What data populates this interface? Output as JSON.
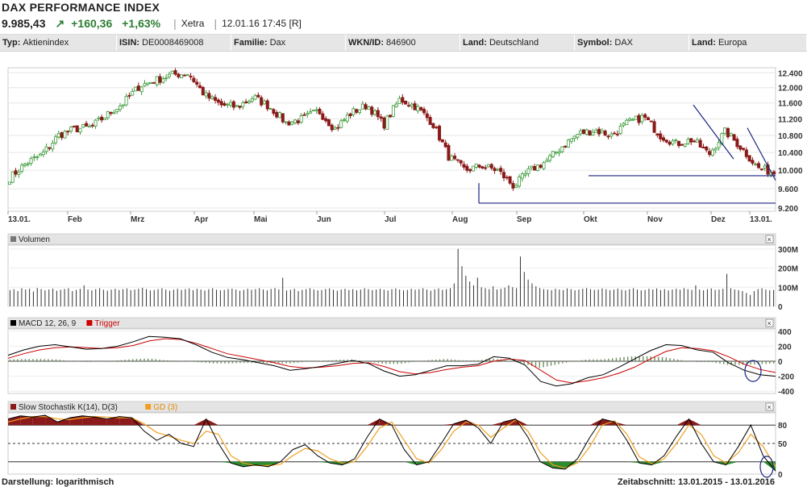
{
  "header": {
    "title": "DAX PERFORMANCE INDEX",
    "price": "9.985,43",
    "arrow_icon": "up-right-arrow",
    "change_abs": "+160,36",
    "change_pct": "+1,63%",
    "exchange": "Xetra",
    "datetime": "12.01.16 17:45 [R]"
  },
  "info": [
    {
      "label": "Typ:",
      "value": "Aktienindex"
    },
    {
      "label": "ISIN:",
      "value": "DE0008469008"
    },
    {
      "label": "Familie:",
      "value": "Dax"
    },
    {
      "label": "WKN/ID:",
      "value": "846900"
    },
    {
      "label": "Land:",
      "value": "Deutschland"
    },
    {
      "label": "Symbol:",
      "value": "DAX"
    },
    {
      "label": "Land:",
      "value": "Europa"
    }
  ],
  "footer": {
    "display_mode": "Darstellung: logarithmisch",
    "period": "Zeitabschnitt: 13.01.2015 - 13.01.2016"
  },
  "colors": {
    "up_candle": "#3a9a3a",
    "down_candle": "#8b1a1a",
    "macd_line": "#000000",
    "trigger_line": "#cc0000",
    "k_line": "#000000",
    "d_line": "#f0a020",
    "stoch_upper_fill": "#8b1a1a",
    "stoch_lower_fill": "#2e8b2e",
    "histogram": "#6f8f5f",
    "annotation": "#1a237e"
  },
  "chart_data": [
    {
      "type": "candlestick",
      "title": "",
      "scale": "log",
      "x_tick_labels": [
        "13.01.",
        "Feb",
        "Mrz",
        "Apr",
        "Mai",
        "Jun",
        "Jul",
        "Aug",
        "Sep",
        "Okt",
        "Nov",
        "Dez",
        "13.01."
      ],
      "y_ticks": [
        9200,
        9600,
        10000,
        10400,
        10800,
        11200,
        11600,
        12000,
        12400
      ],
      "y_tick_labels": [
        "9.200",
        "9.600",
        "10.000",
        "10.400",
        "10.800",
        "11.200",
        "11.600",
        "12.000",
        "12.400"
      ],
      "ylim": [
        9200,
        12450
      ],
      "annotations": [
        {
          "type": "support_line",
          "from": "24.08.",
          "to": "13.01.",
          "value": 9300
        },
        {
          "type": "support_line",
          "from": "01.10.",
          "to": "13.01.",
          "value": 9880
        },
        {
          "type": "trend_line",
          "from": "30.11.",
          "to": "16.12.",
          "start_value": 11500,
          "end_value": 10200
        },
        {
          "type": "trend_line",
          "from": "29.12.",
          "to": "13.01.",
          "start_value": 10950,
          "end_value": 9800
        }
      ],
      "series": [
        {
          "values": [
            9830,
            10150,
            10350,
            10800,
            10950,
            11000,
            11300,
            11600,
            12050,
            12200,
            12350,
            12380,
            11800,
            11550,
            11500,
            11750,
            11500,
            11100,
            11200,
            11400,
            10950,
            11350,
            11550,
            11050,
            11700,
            11500,
            11100,
            10300,
            10000,
            10100,
            10000,
            9650,
            10000,
            10200,
            10550,
            10850,
            10920,
            10800,
            11100,
            11250,
            10800,
            10600,
            10700,
            10350,
            10900,
            10500,
            10050,
            9950
          ]
        }
      ]
    },
    {
      "type": "bar",
      "title": "Volumen",
      "y_ticks": [
        0,
        100,
        200,
        300
      ],
      "y_tick_labels": [
        "0",
        "100M",
        "200M",
        "300M"
      ],
      "ylim": [
        0,
        320
      ],
      "values": [
        85,
        90,
        80,
        95,
        88,
        92,
        78,
        96,
        90,
        84,
        88,
        93,
        82,
        87,
        91,
        95,
        80,
        86,
        92,
        110,
        88,
        84,
        90,
        95,
        87,
        82,
        88,
        92,
        86,
        90,
        94,
        85,
        88,
        92,
        97,
        90,
        84,
        86,
        90,
        95,
        88,
        82,
        87,
        92,
        86,
        90,
        94,
        85,
        92,
        88,
        83,
        90,
        95,
        87,
        84,
        86,
        91,
        93,
        88,
        82,
        86,
        92,
        87,
        90,
        95,
        88,
        84,
        91,
        96,
        89,
        150,
        83,
        87,
        92,
        80,
        86,
        90,
        95,
        88,
        84,
        86,
        91,
        94,
        87,
        82,
        88,
        92,
        86,
        90,
        84,
        88,
        95,
        90,
        85,
        88,
        92,
        87,
        83,
        90,
        94,
        88,
        84,
        86,
        92,
        87,
        90,
        95,
        88,
        82,
        89,
        94,
        86,
        90,
        95,
        120,
        300,
        210,
        160,
        130,
        110,
        150,
        100,
        95,
        90,
        105,
        88,
        92,
        98,
        110,
        100,
        95,
        260,
        180,
        140,
        120,
        105,
        96,
        90,
        88,
        85,
        92,
        88,
        86,
        94,
        90,
        84,
        88,
        92,
        96,
        90,
        86,
        88,
        94,
        90,
        85,
        88,
        93,
        87,
        84,
        90,
        95,
        88,
        84,
        86,
        92,
        88,
        94,
        86,
        90,
        84,
        88,
        92,
        87,
        95,
        90,
        86,
        110,
        88,
        84,
        90,
        94,
        86,
        88,
        92,
        170,
        95,
        88,
        85,
        80,
        70,
        60,
        80,
        90,
        95,
        88,
        84,
        86
      ]
    },
    {
      "type": "line",
      "title": "MACD 12, 26, 9",
      "legend": [
        "MACD 12, 26, 9",
        "Trigger"
      ],
      "y_ticks": [
        -400,
        -200,
        0,
        200,
        400
      ],
      "y_tick_labels": [
        "-400",
        "-200",
        "0",
        "200",
        "400"
      ],
      "ylim": [
        -430,
        430
      ],
      "series": [
        {
          "name": "MACD 12, 26, 9",
          "values": [
            80,
            150,
            200,
            220,
            190,
            160,
            170,
            200,
            260,
            330,
            320,
            300,
            220,
            120,
            50,
            20,
            -20,
            -60,
            -120,
            -100,
            -70,
            -30,
            10,
            -30,
            -130,
            -200,
            -180,
            -120,
            -60,
            -60,
            -40,
            60,
            40,
            -50,
            -270,
            -330,
            -300,
            -220,
            -180,
            -80,
            30,
            140,
            220,
            210,
            150,
            120,
            -20,
            -120,
            -180,
            -200
          ]
        },
        {
          "name": "Trigger",
          "values": [
            40,
            100,
            150,
            180,
            190,
            180,
            170,
            180,
            210,
            270,
            300,
            290,
            240,
            170,
            100,
            60,
            20,
            -20,
            -70,
            -90,
            -80,
            -60,
            -30,
            -20,
            -70,
            -140,
            -170,
            -150,
            -110,
            -80,
            -60,
            0,
            30,
            10,
            -120,
            -250,
            -290,
            -260,
            -220,
            -160,
            -80,
            30,
            130,
            180,
            170,
            140,
            60,
            -40,
            -110,
            -150
          ]
        }
      ],
      "annotations": [
        {
          "type": "ellipse",
          "at": "end",
          "color": "annotation"
        }
      ]
    },
    {
      "type": "line",
      "title": "Slow Stochastik K(14), D(3)",
      "legend": [
        "Slow Stochastik K(14), D(3)",
        "GD (3)"
      ],
      "y_ticks": [
        0,
        20,
        50,
        80
      ],
      "y_tick_labels": [
        "0",
        "",
        "50",
        "80"
      ],
      "reference_lines": [
        80,
        50,
        20
      ],
      "ylim": [
        0,
        100
      ],
      "series": [
        {
          "name": "Slow Stochastik K(14), D(3)",
          "values": [
            90,
            95,
            93,
            96,
            85,
            92,
            95,
            93,
            90,
            94,
            92,
            70,
            55,
            65,
            50,
            45,
            90,
            50,
            18,
            12,
            15,
            12,
            20,
            40,
            48,
            30,
            18,
            15,
            25,
            60,
            90,
            80,
            40,
            15,
            20,
            50,
            82,
            88,
            75,
            50,
            85,
            90,
            60,
            20,
            10,
            8,
            25,
            60,
            90,
            85,
            55,
            18,
            15,
            30,
            62,
            90,
            50,
            20,
            15,
            45,
            80,
            30,
            5
          ]
        },
        {
          "name": "GD (3)",
          "values": [
            85,
            90,
            94,
            94,
            90,
            89,
            92,
            94,
            93,
            92,
            92,
            82,
            68,
            62,
            55,
            50,
            70,
            65,
            30,
            18,
            14,
            14,
            16,
            30,
            42,
            38,
            25,
            18,
            20,
            45,
            75,
            85,
            55,
            25,
            18,
            40,
            70,
            85,
            80,
            60,
            75,
            88,
            70,
            35,
            15,
            10,
            18,
            45,
            80,
            87,
            65,
            28,
            17,
            25,
            50,
            80,
            65,
            30,
            18,
            35,
            65,
            45,
            12
          ]
        }
      ],
      "annotations": [
        {
          "type": "ellipse",
          "at": "end",
          "color": "annotation"
        }
      ]
    }
  ]
}
